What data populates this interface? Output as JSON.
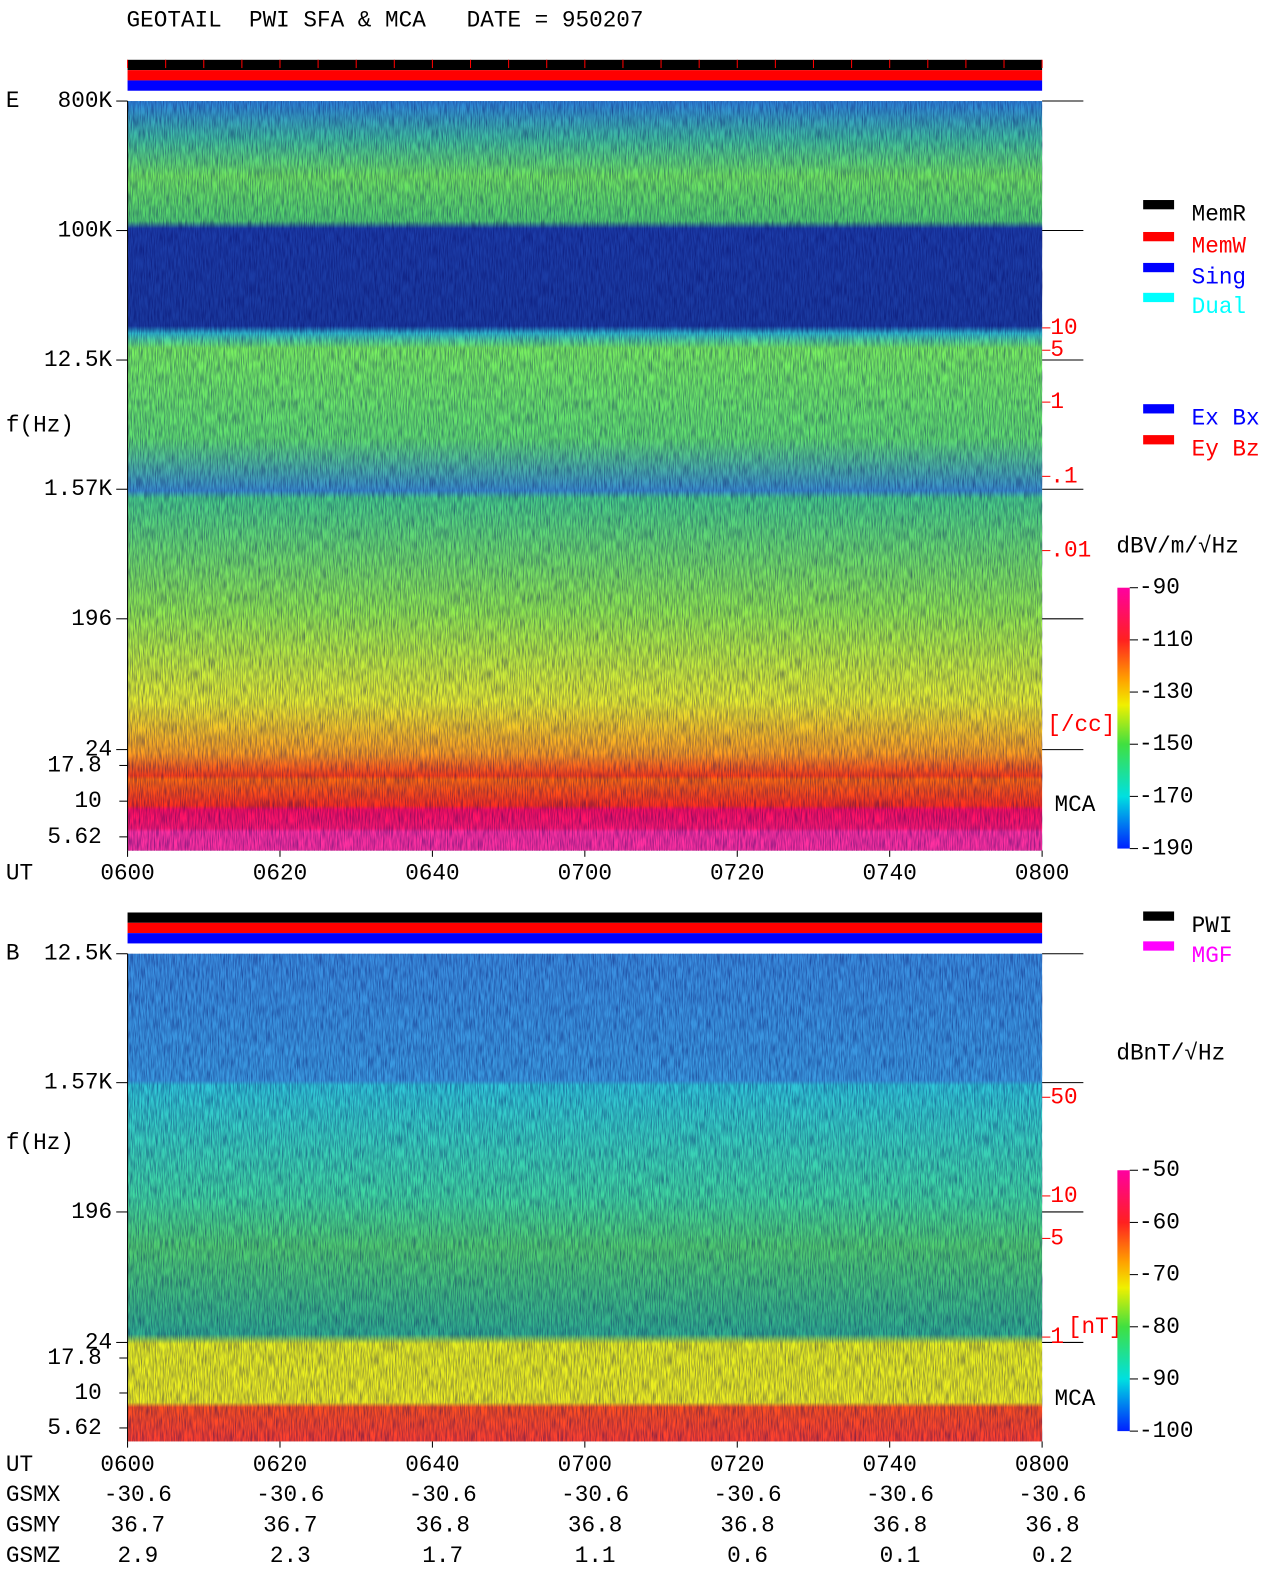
{
  "chart_data": [
    {
      "type": "spectrogram",
      "title": "GEOTAIL  PWI SFA & MCA   DATE = 950207",
      "panel_label": "E",
      "ylabel": "f(Hz)",
      "xlabel": "UT",
      "log_y": true,
      "ylim": [
        24,
        800000
      ],
      "yticks": [
        {
          "value": 800000,
          "label": "800K"
        },
        {
          "value": 100000,
          "label": "100K"
        },
        {
          "value": 12500,
          "label": "12.5K"
        },
        {
          "value": 1570,
          "label": "1.57K"
        },
        196,
        24
      ],
      "mca_label": "MCA",
      "mca_ylim": [
        4.5,
        23
      ],
      "mca_yticks": [
        17.8,
        10,
        5.62
      ],
      "x": [
        "0600",
        "0620",
        "0640",
        "0700",
        "0720",
        "0740",
        "0800"
      ],
      "density_axis": {
        "label": "[/cc]",
        "color": "#ff0000",
        "ylim": [
          0.001,
          100
        ],
        "yticks": [
          10,
          5,
          1,
          {
            "value": 0.1,
            "label": ".1"
          },
          {
            "value": 0.01,
            "label": ".01"
          }
        ]
      },
      "colorbar": {
        "label": "dBV/m/√Hz",
        "lim": [
          -190,
          -90
        ],
        "ticks": [
          -90,
          -110,
          -130,
          -150,
          -170,
          -190
        ]
      },
      "status_legend": [
        {
          "name": "MemR",
          "color": "#000000"
        },
        {
          "name": "MemW",
          "color": "#ff0000"
        },
        {
          "name": "Sing",
          "color": "#0000ff"
        },
        {
          "name": "Dual",
          "color": "#00ffff"
        }
      ],
      "component_legend": [
        {
          "name": "Ex Bx",
          "color": "#0000ff"
        },
        {
          "name": "Ey Bz",
          "color": "#ff0000"
        }
      ]
    },
    {
      "type": "spectrogram",
      "panel_label": "B",
      "ylabel": "f(Hz)",
      "xlabel": "UT",
      "log_y": true,
      "ylim": [
        24,
        12500
      ],
      "yticks": [
        {
          "value": 12500,
          "label": "12.5K"
        },
        {
          "value": 1570,
          "label": "1.57K"
        },
        196,
        24
      ],
      "mca_label": "MCA",
      "mca_ylim": [
        4.5,
        23
      ],
      "mca_yticks": [
        17.8,
        10,
        5.62
      ],
      "x": [
        "0600",
        "0620",
        "0640",
        "0700",
        "0720",
        "0740",
        "0800"
      ],
      "density_axis": {
        "label": "[nT]",
        "color": "#ff0000",
        "ylim": [
          0.5,
          100
        ],
        "yticks": [
          50,
          10,
          5,
          1
        ]
      },
      "colorbar": {
        "label": "dBnT/√Hz",
        "lim": [
          -100,
          -50
        ],
        "ticks": [
          -50,
          -60,
          -70,
          -80,
          -90,
          -100
        ]
      },
      "status_legend": [
        {
          "name": "PWI",
          "color": "#000000"
        },
        {
          "name": "MGF",
          "color": "#ff00ff"
        }
      ],
      "orbit": [
        {
          "name": "GSMX",
          "values": [
            -30.6,
            -30.6,
            -30.6,
            -30.6,
            -30.6,
            -30.6,
            -30.6
          ]
        },
        {
          "name": "GSMY",
          "values": [
            36.7,
            36.7,
            36.8,
            36.8,
            36.8,
            36.8,
            36.8
          ]
        },
        {
          "name": "GSMZ",
          "values": [
            2.9,
            2.3,
            1.7,
            1.1,
            0.6,
            0.1,
            0.2
          ]
        }
      ]
    }
  ]
}
